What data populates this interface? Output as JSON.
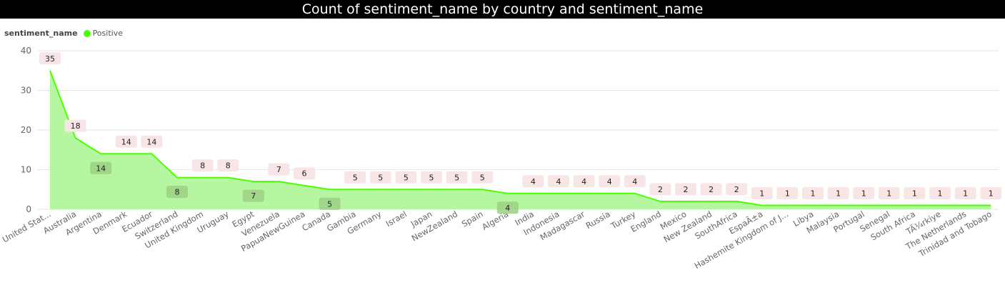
{
  "title": "Count of sentiment_name by country and sentiment_name",
  "legend": {
    "title": "sentiment_name",
    "series_label": "Positive"
  },
  "colors": {
    "line": "#4cff00",
    "area": "#b5f7a0",
    "label_bg_above": "#f8e6e6",
    "label_bg_below": "#9ecf86"
  },
  "chart_data": {
    "type": "area",
    "title": "Count of sentiment_name by country and sentiment_name",
    "xlabel": "",
    "ylabel": "",
    "ylim": [
      0,
      40
    ],
    "yticks": [
      0,
      10,
      20,
      30,
      40
    ],
    "grid": true,
    "legend_position": "top-left",
    "categories": [
      "United Stat...",
      "Australia",
      "Argentina",
      "Denmark",
      "Ecuador",
      "Switzerland",
      "United Kingdom",
      "Uruguay",
      "Egypt",
      "Venezuela",
      "PapuaNewGuinea",
      "Canada",
      "Gambia",
      "Germany",
      "Israel",
      "Japan",
      "NewZealand",
      "Spain",
      "Algeria",
      "India",
      "Indonesia",
      "Madagascar",
      "Russia",
      "Turkey",
      "England",
      "Mexico",
      "New Zealand",
      "SouthAfrica",
      "EspaÃ±a",
      "Hashemite Kingdom of J...",
      "Libya",
      "Malaysia",
      "Portugal",
      "Senegal",
      "South Africa",
      "TÃ¼rkiye",
      "The Netherlands",
      "Trinidad and Tobago"
    ],
    "series": [
      {
        "name": "Positive",
        "values": [
          35,
          18,
          14,
          14,
          14,
          8,
          8,
          8,
          7,
          7,
          6,
          5,
          5,
          5,
          5,
          5,
          5,
          5,
          4,
          4,
          4,
          4,
          4,
          4,
          2,
          2,
          2,
          2,
          1,
          1,
          1,
          1,
          1,
          1,
          1,
          1,
          1,
          1
        ]
      }
    ],
    "label_below": [
      false,
      false,
      true,
      false,
      false,
      true,
      false,
      false,
      true,
      false,
      false,
      true,
      false,
      false,
      false,
      false,
      false,
      false,
      true,
      false,
      false,
      false,
      false,
      false,
      false,
      false,
      false,
      false,
      false,
      false,
      false,
      false,
      false,
      false,
      false,
      false,
      false,
      false
    ]
  }
}
